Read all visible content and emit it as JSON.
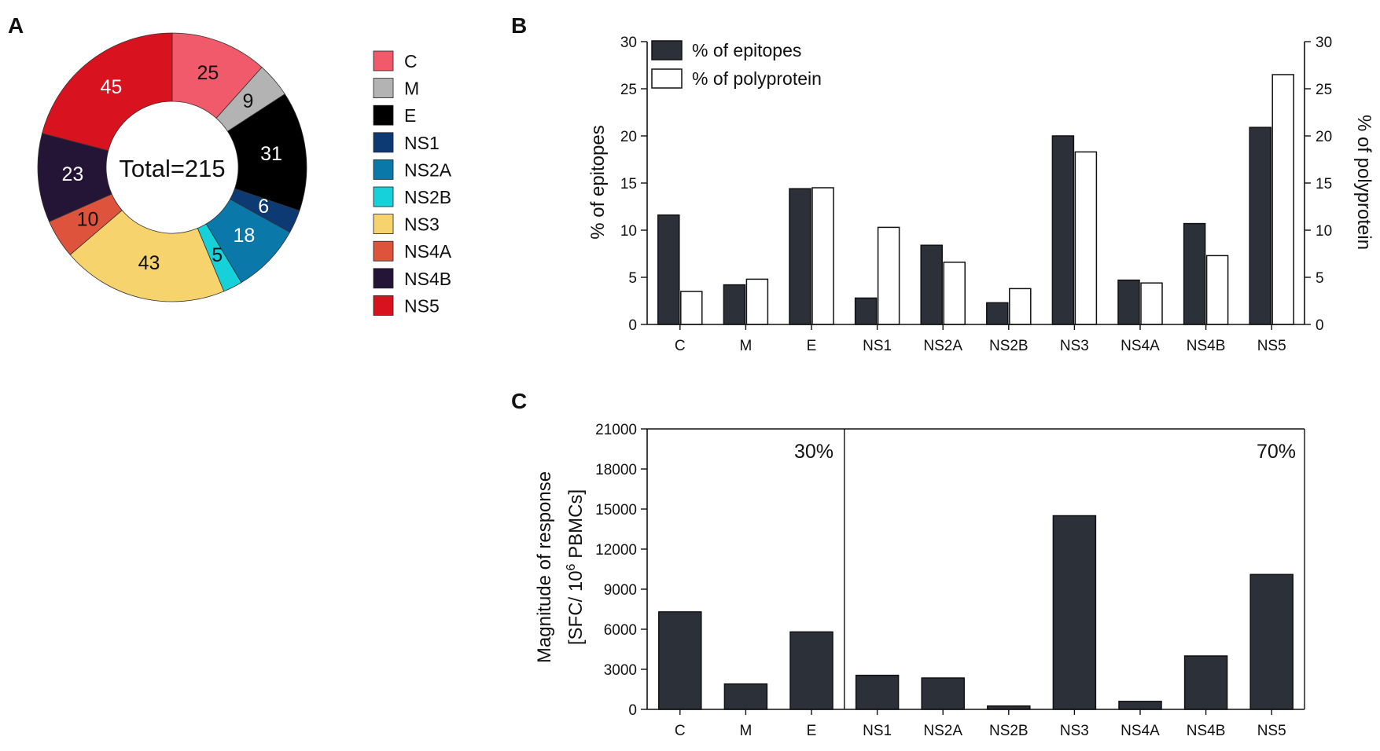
{
  "panels": {
    "a": "A",
    "b": "B",
    "c": "C"
  },
  "chart_data": [
    {
      "type": "pie",
      "title": "",
      "center_label": "Total=215",
      "categories": [
        "C",
        "M",
        "E",
        "NS1",
        "NS2A",
        "NS2B",
        "NS3",
        "NS4A",
        "NS4B",
        "NS5"
      ],
      "values": [
        25,
        9,
        31,
        6,
        18,
        5,
        43,
        10,
        23,
        45
      ],
      "colors": [
        "#f15a6a",
        "#b3b3b3",
        "#000000",
        "#0e3a73",
        "#0a78a8",
        "#16d0da",
        "#f7d36e",
        "#dd533c",
        "#241536",
        "#d9121f"
      ],
      "label_colors": [
        "#111111",
        "#111111",
        "#ffffff",
        "#ffffff",
        "#ffffff",
        "#111111",
        "#111111",
        "#111111",
        "#ffffff",
        "#ffffff"
      ]
    },
    {
      "type": "bar",
      "categories": [
        "C",
        "M",
        "E",
        "NS1",
        "NS2A",
        "NS2B",
        "NS3",
        "NS4A",
        "NS4B",
        "NS5"
      ],
      "series": [
        {
          "name": "% of epitopes",
          "values": [
            11.6,
            4.2,
            14.4,
            2.8,
            8.4,
            2.3,
            20.0,
            4.7,
            10.7,
            20.9
          ],
          "color": "#2b3039"
        },
        {
          "name": "% of polyprotein",
          "values": [
            3.5,
            4.8,
            14.5,
            10.3,
            6.6,
            3.8,
            18.3,
            4.4,
            7.3,
            26.5
          ],
          "color": "#ffffff"
        }
      ],
      "ylabel": "% of epitopes",
      "y2label": "% of polyprotein",
      "ylim": [
        0,
        30
      ],
      "yticks": [
        "0",
        "5",
        "10",
        "15",
        "20",
        "25",
        "30"
      ]
    },
    {
      "type": "bar",
      "categories": [
        "C",
        "M",
        "E",
        "NS1",
        "NS2A",
        "NS2B",
        "NS3",
        "NS4A",
        "NS4B",
        "NS5"
      ],
      "values": [
        7300,
        1900,
        5800,
        2550,
        2350,
        250,
        14500,
        600,
        4000,
        10100
      ],
      "color": "#2b3039",
      "ylabel_line1": "Magnitude of response",
      "ylabel_line2_pre": "[SFC/ 10",
      "ylabel_line2_sup": "6",
      "ylabel_line2_post": " PBMCs]",
      "ylim": [
        0,
        21000
      ],
      "yticks": [
        "0",
        "3000",
        "6000",
        "9000",
        "12000",
        "15000",
        "18000",
        "21000"
      ],
      "annotations": [
        "30%",
        "70%"
      ],
      "divider_after_index": 2
    }
  ]
}
